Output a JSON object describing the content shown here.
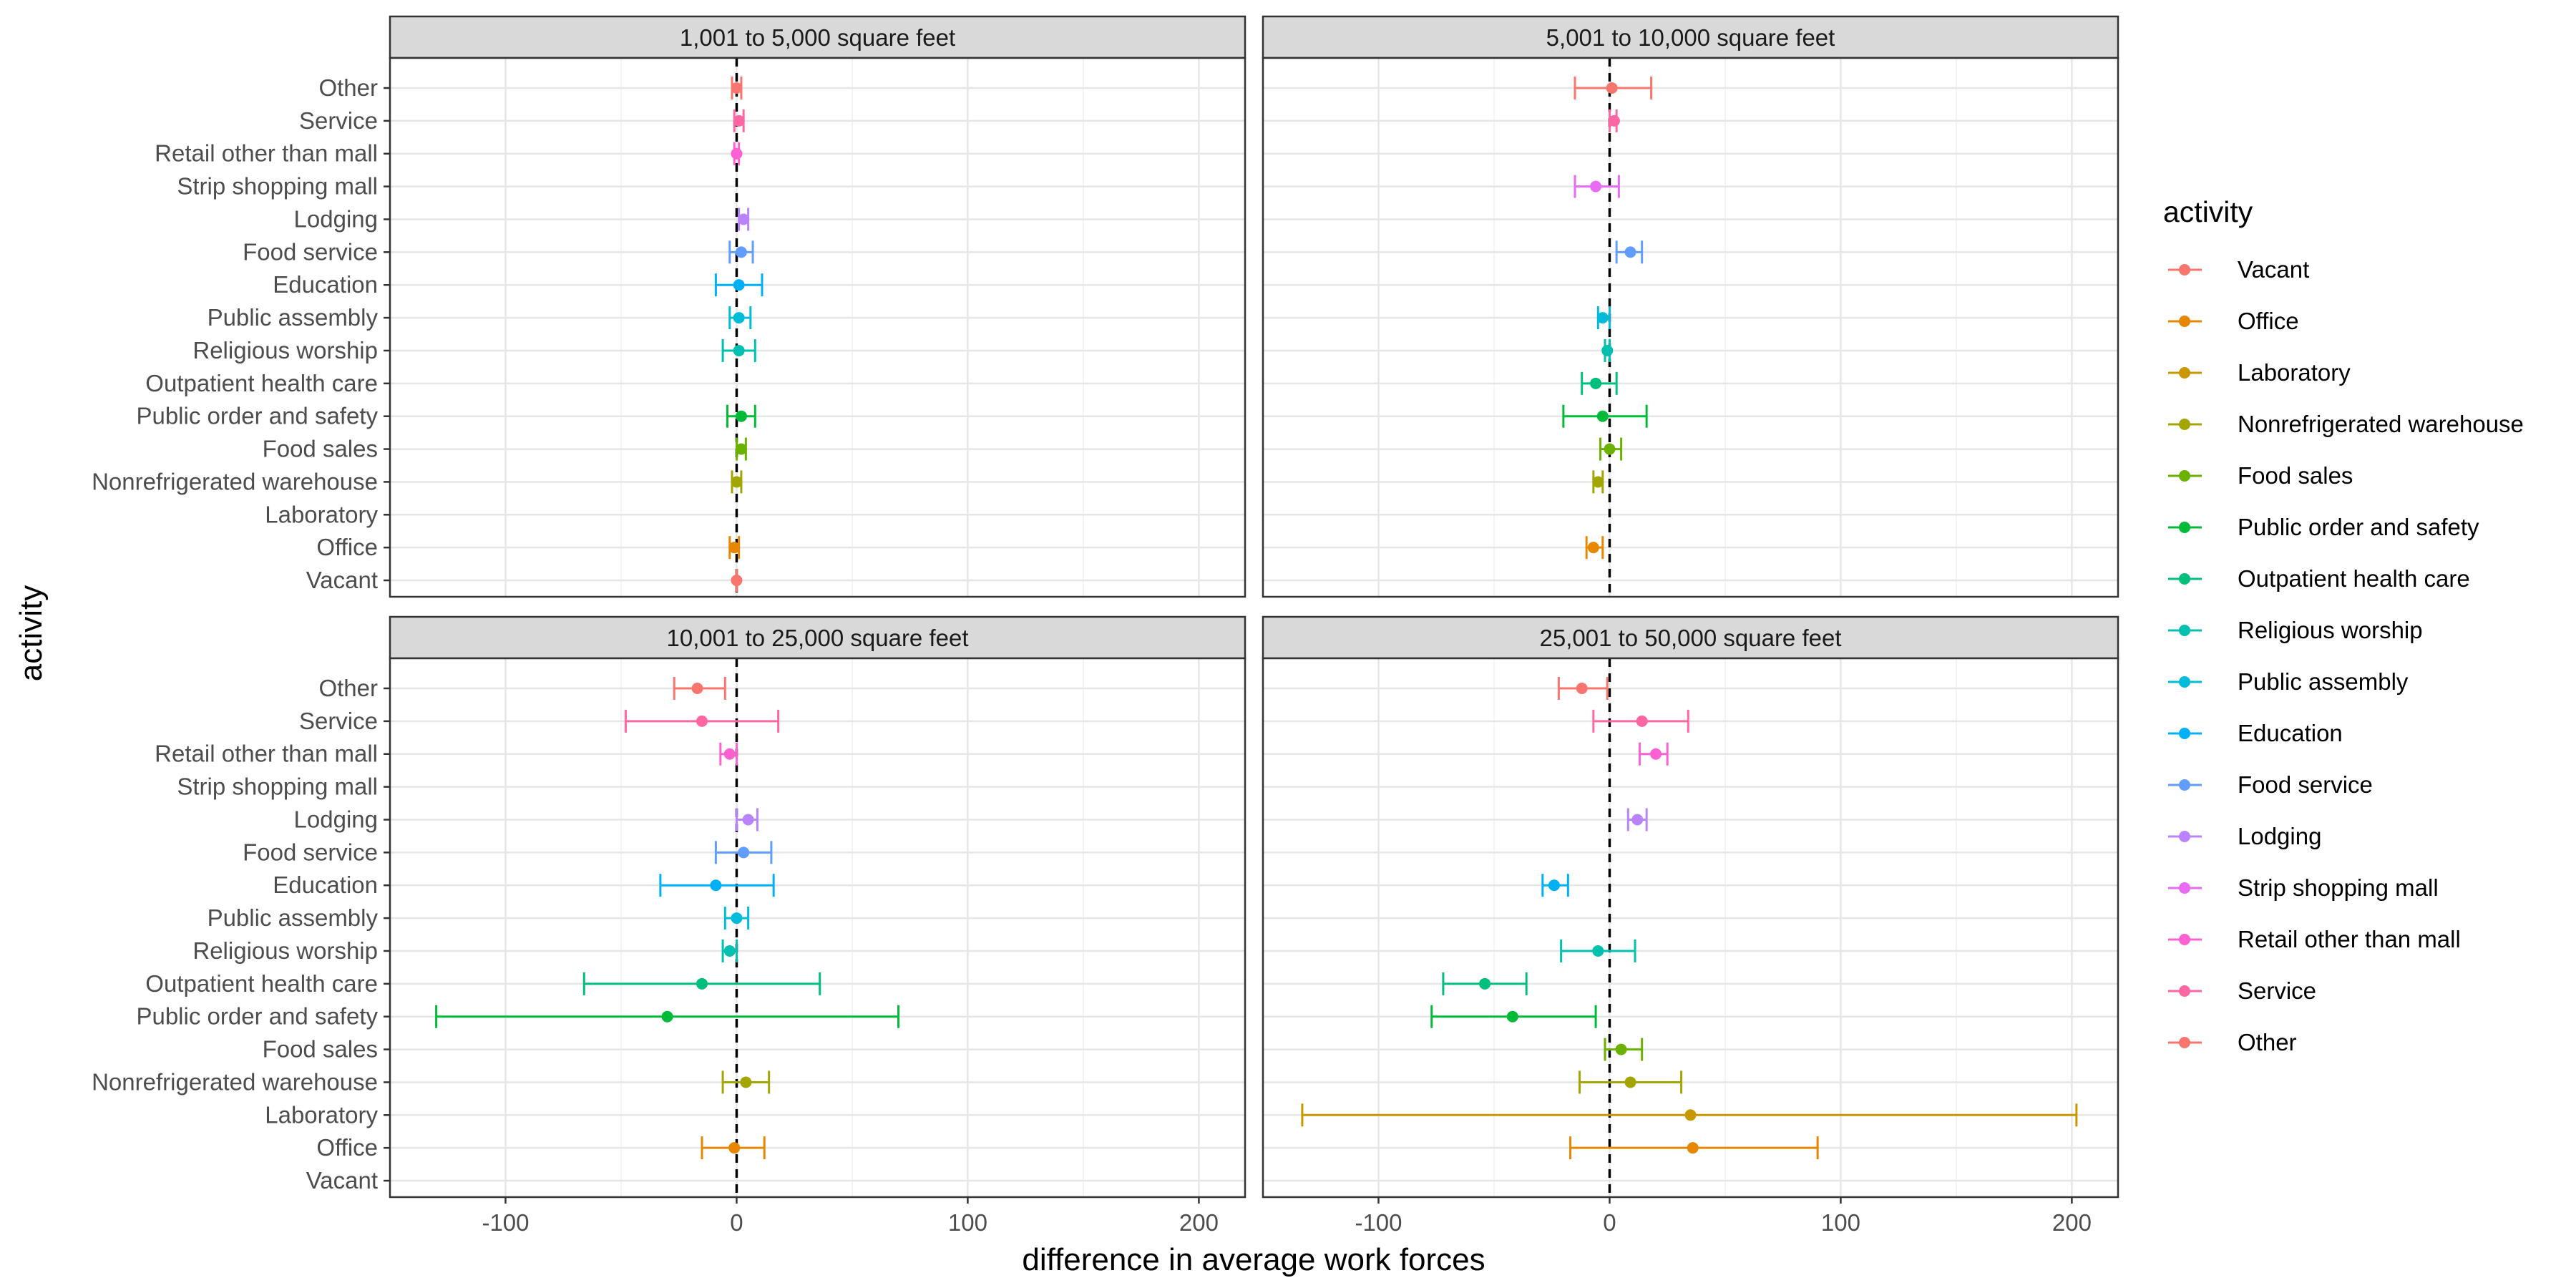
{
  "chart_data": {
    "type": "scatter",
    "xlabel": "difference in average work forces",
    "ylabel": "activity",
    "xlim": [
      -150,
      220
    ],
    "x_ticks": [
      -100,
      0,
      100,
      200
    ],
    "reference_line_x": 0,
    "grid": true,
    "legend": {
      "title": "activity",
      "placement": "right"
    },
    "categories": [
      "Vacant",
      "Office",
      "Laboratory",
      "Nonrefrigerated warehouse",
      "Food sales",
      "Public order and safety",
      "Outpatient health care",
      "Religious worship",
      "Public assembly",
      "Education",
      "Food service",
      "Lodging",
      "Strip shopping mall",
      "Retail other than mall",
      "Service",
      "Other"
    ],
    "colors": {
      "Vacant": "#F8766D",
      "Office": "#E58700",
      "Laboratory": "#C99800",
      "Nonrefrigerated warehouse": "#A3A500",
      "Food sales": "#6BB100",
      "Public order and safety": "#00BA38",
      "Outpatient health care": "#00BF7D",
      "Religious worship": "#00C0AF",
      "Public assembly": "#00BCD8",
      "Education": "#00B0F6",
      "Food service": "#619CFF",
      "Lodging": "#B983FF",
      "Strip shopping mall": "#E76BF3",
      "Retail other than mall": "#FD61D1",
      "Service": "#FF67A4",
      "Other": "#F8766D"
    },
    "panels": [
      {
        "title": "1,001 to 5,000 square feet",
        "points": [
          {
            "activity": "Vacant",
            "x": 0,
            "lo": 0,
            "hi": 0
          },
          {
            "activity": "Office",
            "x": -1,
            "lo": -3,
            "hi": 1
          },
          {
            "activity": "Nonrefrigerated warehouse",
            "x": 0,
            "lo": -2,
            "hi": 2
          },
          {
            "activity": "Food sales",
            "x": 2,
            "lo": 0,
            "hi": 4
          },
          {
            "activity": "Public order and safety",
            "x": 2,
            "lo": -4,
            "hi": 8
          },
          {
            "activity": "Religious worship",
            "x": 1,
            "lo": -6,
            "hi": 8
          },
          {
            "activity": "Public assembly",
            "x": 1,
            "lo": -3,
            "hi": 6
          },
          {
            "activity": "Education",
            "x": 1,
            "lo": -9,
            "hi": 11
          },
          {
            "activity": "Food service",
            "x": 2,
            "lo": -3,
            "hi": 7
          },
          {
            "activity": "Lodging",
            "x": 3,
            "lo": 1,
            "hi": 5
          },
          {
            "activity": "Retail other than mall",
            "x": 0,
            "lo": -1,
            "hi": 1
          },
          {
            "activity": "Service",
            "x": 1,
            "lo": -1,
            "hi": 3
          },
          {
            "activity": "Other",
            "x": 0,
            "lo": -2,
            "hi": 2
          }
        ]
      },
      {
        "title": "5,001 to 10,000 square feet",
        "points": [
          {
            "activity": "Office",
            "x": -7,
            "lo": -10,
            "hi": -3
          },
          {
            "activity": "Nonrefrigerated warehouse",
            "x": -5,
            "lo": -7,
            "hi": -3
          },
          {
            "activity": "Food sales",
            "x": 0,
            "lo": -4,
            "hi": 5
          },
          {
            "activity": "Public order and safety",
            "x": -3,
            "lo": -20,
            "hi": 16
          },
          {
            "activity": "Outpatient health care",
            "x": -6,
            "lo": -12,
            "hi": 3
          },
          {
            "activity": "Religious worship",
            "x": -1,
            "lo": -2,
            "hi": 0
          },
          {
            "activity": "Public assembly",
            "x": -3,
            "lo": -5,
            "hi": 0
          },
          {
            "activity": "Food service",
            "x": 9,
            "lo": 3,
            "hi": 14
          },
          {
            "activity": "Strip shopping mall",
            "x": -6,
            "lo": -15,
            "hi": 4
          },
          {
            "activity": "Service",
            "x": 2,
            "lo": 0,
            "hi": 3
          },
          {
            "activity": "Other",
            "x": 1,
            "lo": -15,
            "hi": 18
          }
        ]
      },
      {
        "title": "10,001 to 25,000 square feet",
        "points": [
          {
            "activity": "Office",
            "x": -1,
            "lo": -15,
            "hi": 12
          },
          {
            "activity": "Nonrefrigerated warehouse",
            "x": 4,
            "lo": -6,
            "hi": 14
          },
          {
            "activity": "Public order and safety",
            "x": -30,
            "lo": -130,
            "hi": 70
          },
          {
            "activity": "Outpatient health care",
            "x": -15,
            "lo": -66,
            "hi": 36
          },
          {
            "activity": "Religious worship",
            "x": -3,
            "lo": -6,
            "hi": 0
          },
          {
            "activity": "Public assembly",
            "x": 0,
            "lo": -5,
            "hi": 5
          },
          {
            "activity": "Education",
            "x": -9,
            "lo": -33,
            "hi": 16
          },
          {
            "activity": "Food service",
            "x": 3,
            "lo": -9,
            "hi": 15
          },
          {
            "activity": "Lodging",
            "x": 5,
            "lo": 0,
            "hi": 9
          },
          {
            "activity": "Retail other than mall",
            "x": -3,
            "lo": -7,
            "hi": 0
          },
          {
            "activity": "Service",
            "x": -15,
            "lo": -48,
            "hi": 18
          },
          {
            "activity": "Other",
            "x": -17,
            "lo": -27,
            "hi": -5
          }
        ]
      },
      {
        "title": "25,001 to 50,000 square feet",
        "points": [
          {
            "activity": "Office",
            "x": 36,
            "lo": -17,
            "hi": 90
          },
          {
            "activity": "Laboratory",
            "x": 35,
            "lo": -133,
            "hi": 202
          },
          {
            "activity": "Nonrefrigerated warehouse",
            "x": 9,
            "lo": -13,
            "hi": 31
          },
          {
            "activity": "Food sales",
            "x": 5,
            "lo": -2,
            "hi": 14
          },
          {
            "activity": "Public order and safety",
            "x": -42,
            "lo": -77,
            "hi": -6
          },
          {
            "activity": "Outpatient health care",
            "x": -54,
            "lo": -72,
            "hi": -36
          },
          {
            "activity": "Religious worship",
            "x": -5,
            "lo": -21,
            "hi": 11
          },
          {
            "activity": "Education",
            "x": -24,
            "lo": -29,
            "hi": -18
          },
          {
            "activity": "Lodging",
            "x": 12,
            "lo": 8,
            "hi": 16
          },
          {
            "activity": "Retail other than mall",
            "x": 20,
            "lo": 13,
            "hi": 25
          },
          {
            "activity": "Service",
            "x": 14,
            "lo": -7,
            "hi": 34
          },
          {
            "activity": "Other",
            "x": -12,
            "lo": -22,
            "hi": -1
          }
        ]
      }
    ]
  }
}
